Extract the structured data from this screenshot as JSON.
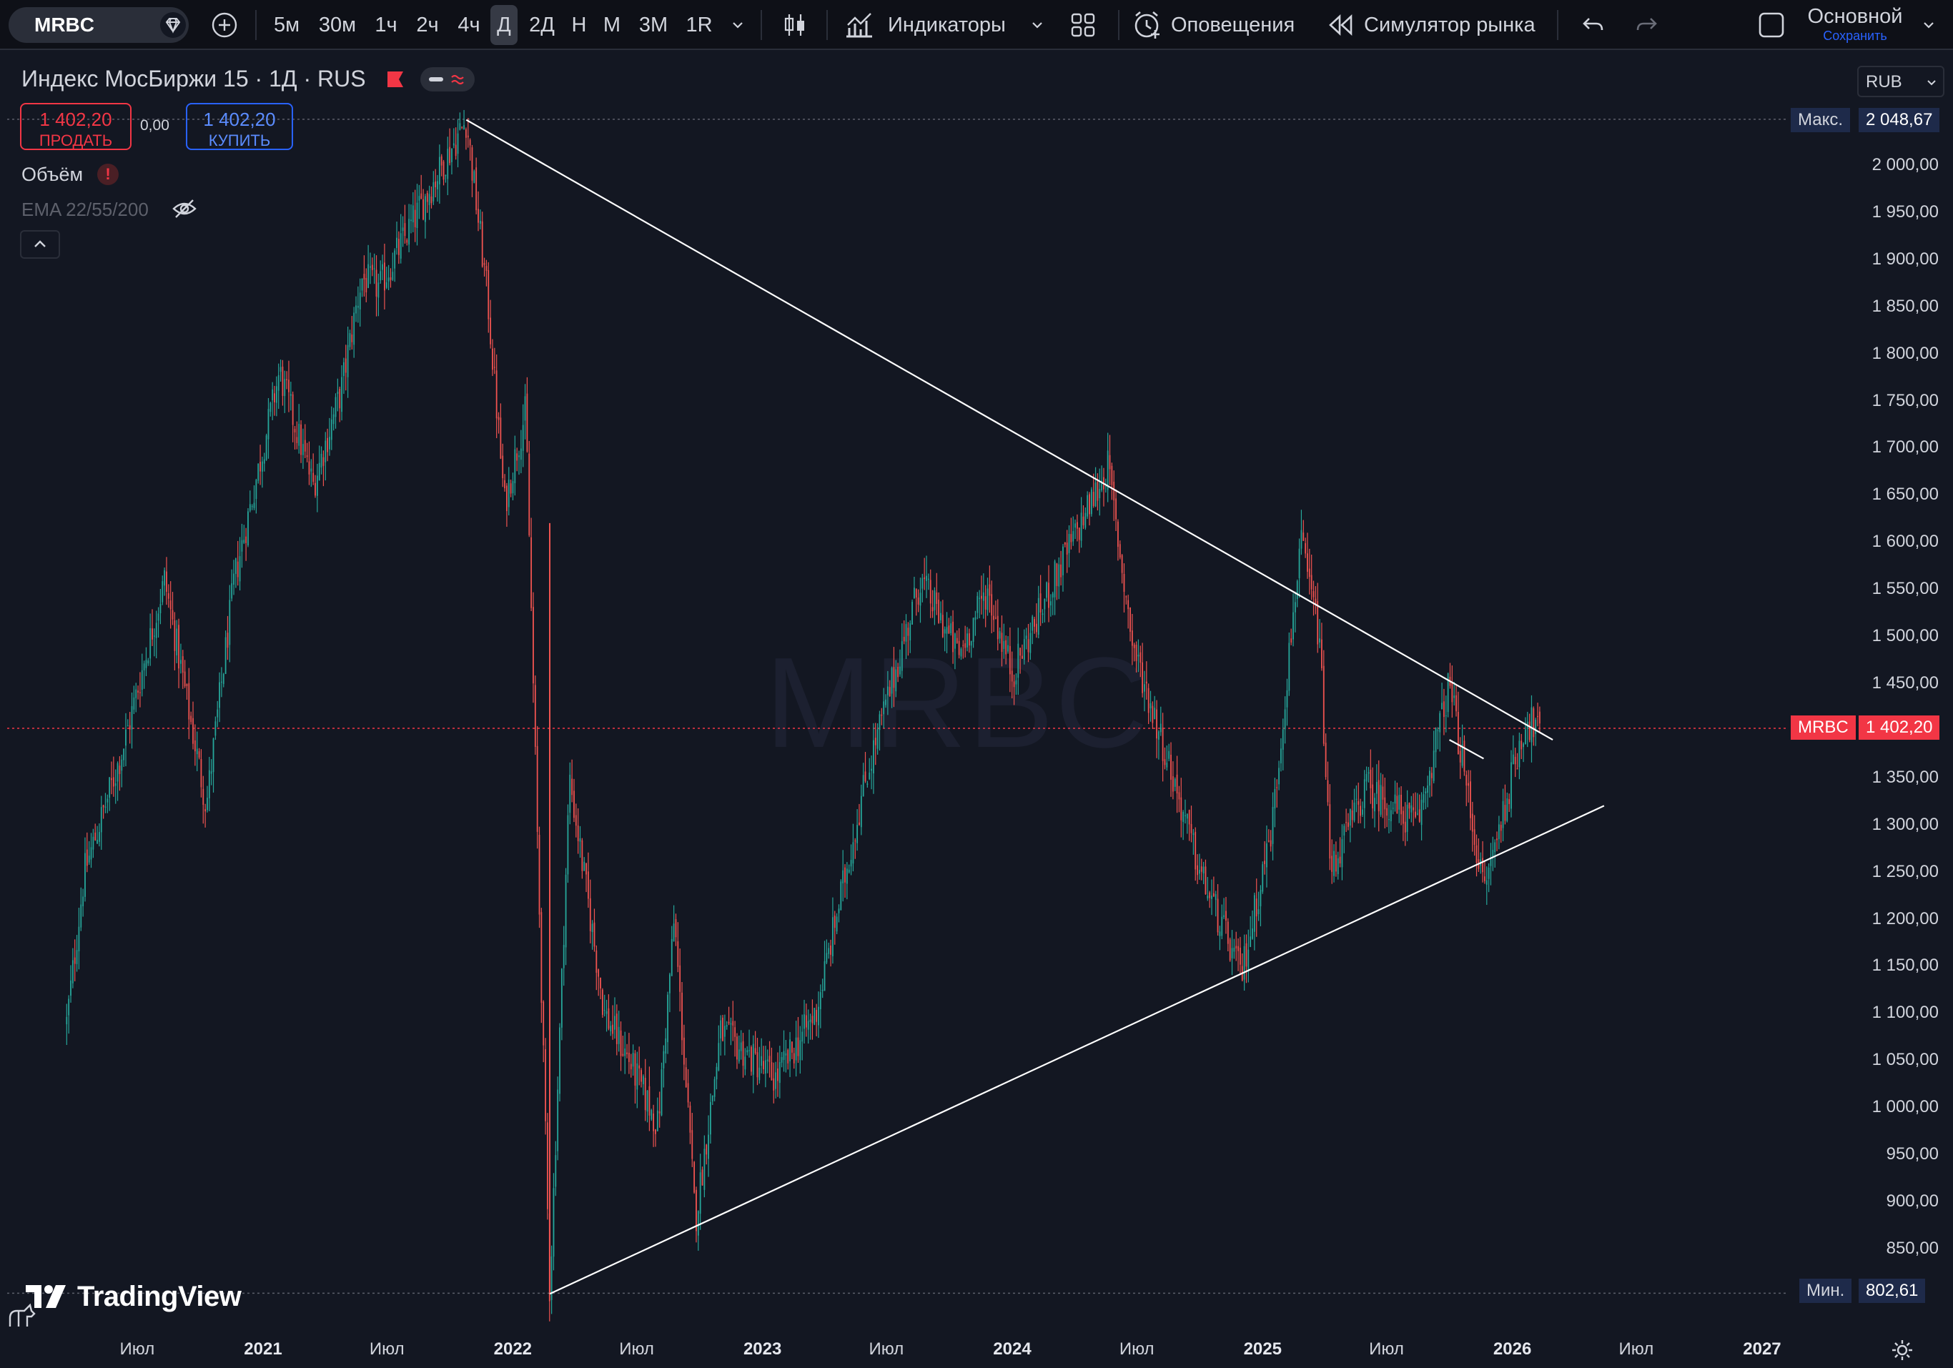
{
  "toolbar": {
    "symbol": "MRBC",
    "timeframes": [
      "5м",
      "30м",
      "1ч",
      "2ч",
      "4ч",
      "Д",
      "2Д",
      "Н",
      "М",
      "3М",
      "1R"
    ],
    "active_timeframe": "Д",
    "indicators_label": "Индикаторы",
    "alerts_label": "Оповещения",
    "replay_label": "Симулятор рынка",
    "layout_name": "Основной",
    "save_label": "Сохранить"
  },
  "legend": {
    "title": "Индекс МосБиржи 15 · 1Д · RUS",
    "sell_price": "1 402,20",
    "sell_label": "ПРОДАТЬ",
    "spread": "0,00",
    "buy_price": "1 402,20",
    "buy_label": "КУПИТЬ",
    "volume_label": "Объём",
    "ema_label": "EMA 22/55/200"
  },
  "currency": "RUB",
  "watermark": "MRBC",
  "brand": "TradingView",
  "price_axis": {
    "ticks": [
      "2 000,00",
      "1 950,00",
      "1 900,00",
      "1 850,00",
      "1 800,00",
      "1 750,00",
      "1 700,00",
      "1 650,00",
      "1 600,00",
      "1 550,00",
      "1 500,00",
      "1 450,00",
      "1 350,00",
      "1 300,00",
      "1 250,00",
      "1 200,00",
      "1 150,00",
      "1 100,00",
      "1 050,00",
      "1 000,00",
      "950,00",
      "900,00",
      "850,00"
    ],
    "max_label": "Макс.",
    "max_value": "2 048,67",
    "min_label": "Мин.",
    "min_value": "802,61",
    "last_label": "MRBC",
    "last_value": "1 402,20"
  },
  "time_axis": [
    "Июл",
    "2021",
    "Июл",
    "2022",
    "Июл",
    "2023",
    "Июл",
    "2024",
    "Июл",
    "2025",
    "Июл",
    "2026",
    "Июл",
    "2027"
  ],
  "colors": {
    "bg": "#131722",
    "up": "#26a69a",
    "down": "#ef5350",
    "trendline": "#ffffff",
    "accent": "#2962ff"
  },
  "chart_data": {
    "type": "candlestick",
    "symbol": "MRBC",
    "interval": "1D",
    "ylim": [
      780,
      2080
    ],
    "last": 1402.2,
    "max": 2048.67,
    "min": 802.61,
    "price_path": [
      [
        "2020-03-20",
        1090
      ],
      [
        "2020-04-15",
        1250
      ],
      [
        "2020-06-10",
        1380
      ],
      [
        "2020-08-10",
        1560
      ],
      [
        "2020-10-10",
        1320
      ],
      [
        "2020-11-20",
        1560
      ],
      [
        "2021-01-25",
        1780
      ],
      [
        "2021-03-15",
        1660
      ],
      [
        "2021-04-25",
        1760
      ],
      [
        "2021-05-25",
        1880
      ],
      [
        "2021-06-20",
        1870
      ],
      [
        "2021-08-15",
        1950
      ],
      [
        "2021-10-25",
        2048
      ],
      [
        "2021-11-25",
        1860
      ],
      [
        "2021-12-20",
        1640
      ],
      [
        "2022-01-20",
        1740
      ],
      [
        "2022-02-24",
        802
      ],
      [
        "2022-03-25",
        1350
      ],
      [
        "2022-05-15",
        1100
      ],
      [
        "2022-06-20",
        1050
      ],
      [
        "2022-08-01",
        980
      ],
      [
        "2022-08-25",
        1200
      ],
      [
        "2022-09-25",
        880
      ],
      [
        "2022-11-01",
        1080
      ],
      [
        "2023-01-20",
        1030
      ],
      [
        "2023-03-20",
        1100
      ],
      [
        "2023-06-01",
        1350
      ],
      [
        "2023-08-20",
        1560
      ],
      [
        "2023-10-15",
        1480
      ],
      [
        "2023-11-25",
        1550
      ],
      [
        "2024-01-01",
        1460
      ],
      [
        "2024-03-15",
        1580
      ],
      [
        "2024-05-20",
        1680
      ],
      [
        "2024-06-25",
        1490
      ],
      [
        "2024-08-15",
        1370
      ],
      [
        "2024-10-01",
        1250
      ],
      [
        "2024-12-01",
        1140
      ],
      [
        "2025-01-15",
        1300
      ],
      [
        "2025-02-25",
        1600
      ],
      [
        "2025-03-25",
        1500
      ],
      [
        "2025-04-10",
        1250
      ],
      [
        "2025-06-01",
        1340
      ],
      [
        "2025-08-15",
        1300
      ],
      [
        "2025-10-01",
        1450
      ],
      [
        "2025-11-20",
        1230
      ],
      [
        "2026-01-20",
        1410
      ],
      [
        "2026-02-10",
        1402
      ]
    ],
    "trendlines": [
      [
        [
          "2021-10-25",
          2048
        ],
        [
          "2026-03-01",
          1390
        ]
      ],
      [
        [
          "2022-02-24",
          802
        ],
        [
          "2026-05-15",
          1320
        ]
      ],
      [
        [
          "2025-10-01",
          1390
        ],
        [
          "2025-11-20",
          1370
        ]
      ]
    ]
  }
}
